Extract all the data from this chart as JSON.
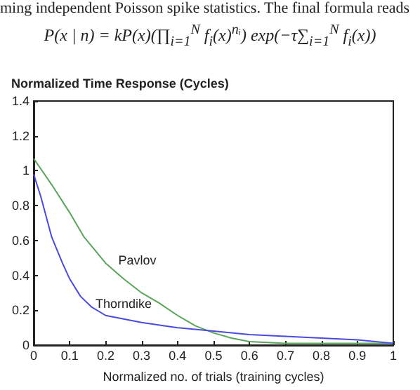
{
  "chart_data": {
    "type": "line",
    "title": "Normalized Time Response (Cycles)",
    "xlabel": "Normalized no. of trials (training cycles)",
    "annotations": [
      "ming independent Poisson spike statistics. The final formula reads",
      "P(x | n) = kP(x)(∏$_{i=1}$$^{N}$ f$_{i}$(x)$^{nᵢ}$) exp(−τ∑$_{i=1}$$^{N}$ f$_{i}$(x))"
    ],
    "xlim": [
      0,
      1
    ],
    "xticks": [
      0,
      0.1,
      0.2,
      0.3,
      0.4,
      0.5,
      0.6,
      0.7,
      0.8,
      0.9,
      1
    ],
    "ylim": [
      0,
      1.4
    ],
    "yticks": [
      0,
      0.2,
      0.4,
      0.6,
      0.8,
      1,
      1.2,
      1.4
    ],
    "grid": false,
    "legend": false,
    "marker": "none",
    "line_style": "solid",
    "series": [
      {
        "name": "Pavlov",
        "color": "#5aa55a",
        "x": [
          0,
          0.05,
          0.1,
          0.14,
          0.2,
          0.25,
          0.3,
          0.35,
          0.4,
          0.45,
          0.5,
          0.55,
          0.6,
          0.7,
          0.8,
          1
        ],
        "values": [
          1.07,
          0.92,
          0.76,
          0.62,
          0.47,
          0.38,
          0.3,
          0.24,
          0.17,
          0.11,
          0.07,
          0.04,
          0.02,
          0.01,
          0.01,
          0.01
        ]
      },
      {
        "name": "Thorndike",
        "color": "#4a4adf",
        "x": [
          0,
          0.02,
          0.05,
          0.08,
          0.1,
          0.13,
          0.16,
          0.2,
          0.3,
          0.4,
          0.5,
          0.6,
          0.7,
          0.8,
          0.9,
          1
        ],
        "values": [
          0.98,
          0.85,
          0.62,
          0.47,
          0.38,
          0.28,
          0.22,
          0.17,
          0.13,
          0.1,
          0.08,
          0.06,
          0.05,
          0.04,
          0.03,
          0.01
        ]
      }
    ]
  }
}
